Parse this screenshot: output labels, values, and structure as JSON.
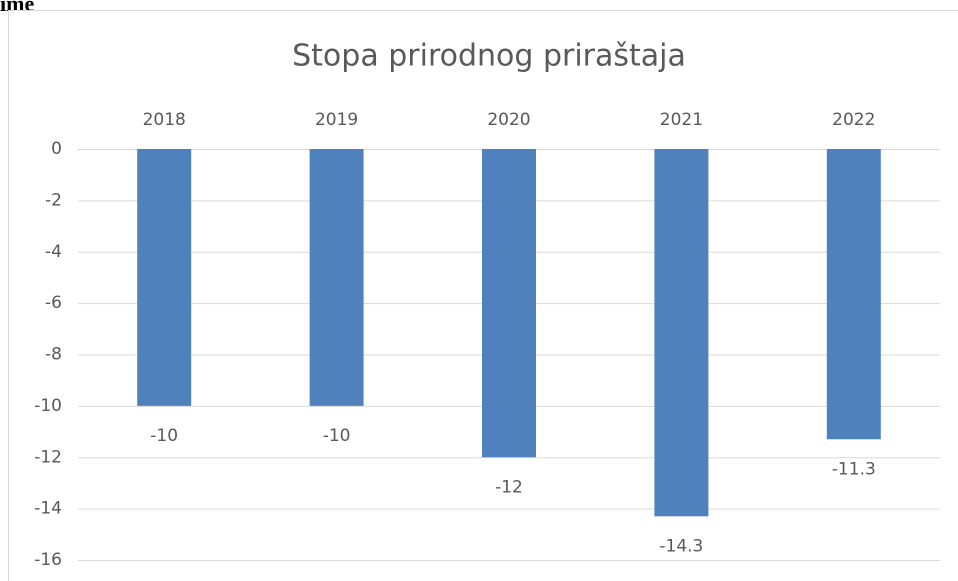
{
  "caption": "ime",
  "chart_data": {
    "type": "bar",
    "title": "Stopa prirodnog priraštaja",
    "categories": [
      "2018",
      "2019",
      "2020",
      "2021",
      "2022"
    ],
    "values": [
      -10,
      -10,
      -12,
      -14.3,
      -11.3
    ],
    "color": "#4f81bd",
    "ylim": [
      -16,
      0
    ],
    "yticks": [
      0,
      -2,
      -4,
      -6,
      -8,
      -10,
      -12,
      -14,
      -16
    ],
    "grid": true
  }
}
